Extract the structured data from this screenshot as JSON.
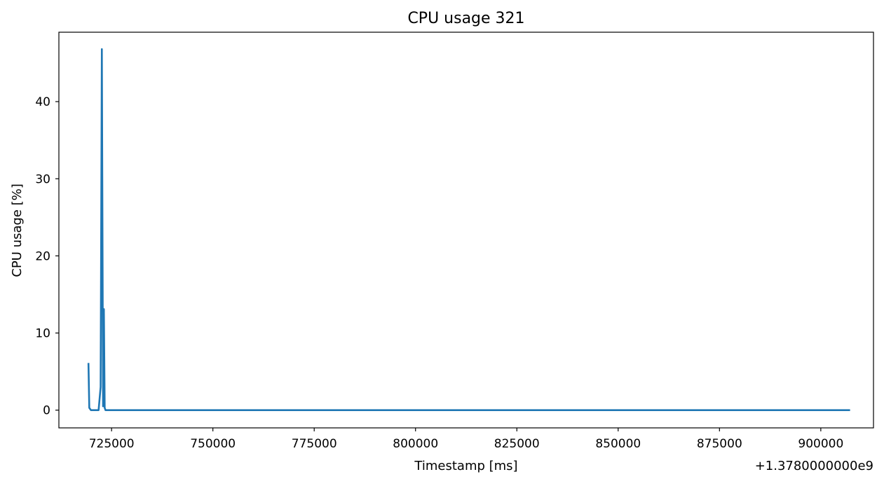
{
  "chart_data": {
    "type": "line",
    "title": "CPU usage 321",
    "xlabel": "Timestamp [ms]",
    "ylabel": "CPU usage [%]",
    "x_offset_label": "+1.3780000000e9",
    "xlim": [
      712000,
      913000
    ],
    "ylim": [
      -2.3,
      49
    ],
    "x_ticks": [
      725000,
      750000,
      775000,
      800000,
      825000,
      850000,
      875000,
      900000
    ],
    "x_tick_labels": [
      "725000",
      "750000",
      "775000",
      "800000",
      "825000",
      "850000",
      "875000",
      "900000"
    ],
    "y_ticks": [
      0,
      10,
      20,
      30,
      40
    ],
    "y_tick_labels": [
      "0",
      "10",
      "20",
      "30",
      "40"
    ],
    "grid": false,
    "legend": "none",
    "series": [
      {
        "color": "#1f77b4",
        "x": [
          719300,
          719500,
          719900,
          720200,
          721800,
          722300,
          722600,
          722900,
          723100,
          723300,
          723500,
          724000,
          907000
        ],
        "y": [
          6.0,
          0.3,
          0.0,
          0.0,
          0.0,
          3.0,
          46.8,
          0.5,
          13.1,
          0.3,
          0.0,
          0.0,
          0.0
        ]
      }
    ]
  }
}
